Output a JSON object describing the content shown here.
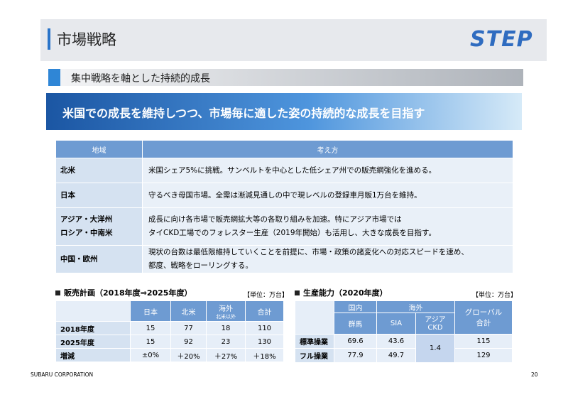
{
  "header": {
    "title": "市場戦略",
    "logo": "STEP"
  },
  "section": {
    "heading": "集中戦略を軸とした持続的成長"
  },
  "banner": {
    "text": "米国での成長を維持しつつ、市場毎に適した姿の持続的な成長を目指す"
  },
  "strategy_table": {
    "headers": [
      "地域",
      "考え方"
    ],
    "rows": [
      {
        "region": [
          "北米"
        ],
        "approach": [
          "米国シェア5%に挑戦。サンベルトを中心とした低シェア州での販売網強化を進める。"
        ]
      },
      {
        "region": [
          "日本"
        ],
        "approach": [
          "守るべき母国市場。全需は漸減見通しの中で現レベルの登録車月販1万台を維持。"
        ]
      },
      {
        "region": [
          "アジア・大洋州",
          "ロシア・中南米"
        ],
        "approach": [
          "成長に向け各市場で販売網拡大等の各取り組みを加速。特にアジア市場では",
          "タイCKD工場でのフォレスター生産（2019年開始）も活用し、大きな成長を目指す。"
        ]
      },
      {
        "region": [
          "中国・欧州"
        ],
        "approach": [
          "現状の台数は最低限維持していくことを前提に、市場・政策の諸変化への対応スピードを速め、",
          "都度、戦略をローリングする。"
        ]
      }
    ]
  },
  "sales_plan": {
    "title": "販売計画（2018年度⇒2025年度）",
    "unit": "【単位：万台】",
    "headers": [
      "日本",
      "北米",
      "海外",
      "合計"
    ],
    "header_note": "北米以外",
    "rows": [
      [
        "2018年度",
        15,
        77,
        18,
        110
      ],
      [
        "2025年度",
        15,
        92,
        23,
        130
      ],
      [
        "増減",
        "±0%",
        "＋20%",
        "＋27%",
        "＋18%"
      ]
    ]
  },
  "capacity": {
    "title": "生産能力（2020年度）",
    "unit": "【単位：万台】",
    "group_headers": [
      "国内",
      "海外"
    ],
    "total_header": [
      "グローバル",
      "合計"
    ],
    "sub_headers": [
      "群馬",
      "SIA"
    ],
    "ckd_header": [
      "アジア",
      "CKD"
    ],
    "rows": [
      {
        "label": "標準操業",
        "values": [
          69.6,
          43.6,
          115
        ]
      },
      {
        "label": "フル操業",
        "values": [
          77.9,
          49.7,
          129
        ]
      }
    ],
    "ckd_value": 1.4
  },
  "footer": {
    "company": "SUBARU CORPORATION",
    "page": 20
  }
}
